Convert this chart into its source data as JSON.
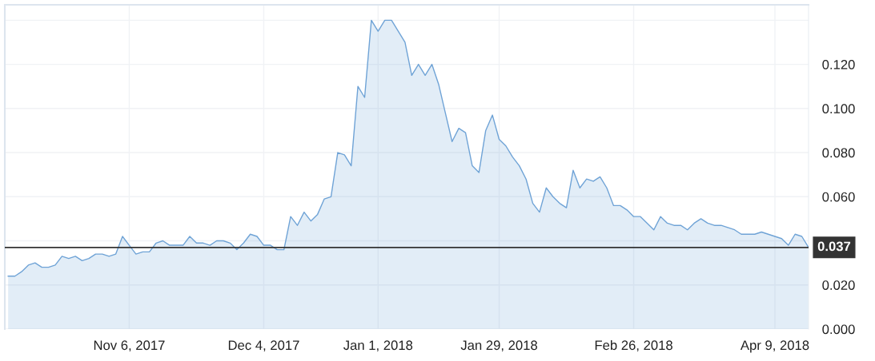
{
  "chart_data": {
    "type": "area",
    "categories": [
      null,
      null,
      null,
      null,
      null,
      null,
      null,
      null,
      null,
      null,
      null,
      null,
      null,
      null,
      null,
      null,
      null,
      null,
      "Nov 6, 2017",
      null,
      null,
      null,
      null,
      null,
      null,
      null,
      null,
      null,
      null,
      null,
      null,
      null,
      null,
      null,
      null,
      null,
      null,
      null,
      "Dec 4, 2017",
      null,
      null,
      null,
      null,
      null,
      null,
      null,
      null,
      null,
      null,
      null,
      null,
      null,
      null,
      null,
      null,
      "Jan 1, 2018",
      null,
      null,
      null,
      null,
      null,
      null,
      null,
      null,
      null,
      null,
      null,
      null,
      null,
      null,
      null,
      null,
      null,
      "Jan 29, 2018",
      null,
      null,
      null,
      null,
      null,
      null,
      null,
      null,
      null,
      null,
      null,
      null,
      null,
      null,
      null,
      null,
      null,
      null,
      null,
      "Feb 26, 2018",
      null,
      null,
      null,
      null,
      null,
      null,
      null,
      null,
      null,
      null,
      null,
      null,
      null,
      null,
      null,
      null,
      null,
      null,
      null,
      null,
      "Apr 9, 2018",
      null,
      null,
      null,
      null,
      null
    ],
    "series": [
      {
        "color": "#6fa3d6",
        "values": [
          0.024,
          0.024,
          0.026,
          0.029,
          0.03,
          0.028,
          0.028,
          0.029,
          0.033,
          0.032,
          0.033,
          0.031,
          0.032,
          0.034,
          0.034,
          0.033,
          0.034,
          0.042,
          0.038,
          0.034,
          0.035,
          0.035,
          0.039,
          0.04,
          0.038,
          0.038,
          0.038,
          0.042,
          0.039,
          0.039,
          0.038,
          0.04,
          0.04,
          0.039,
          0.036,
          0.039,
          0.043,
          0.042,
          0.038,
          0.038,
          0.036,
          0.036,
          0.051,
          0.047,
          0.053,
          0.049,
          0.052,
          0.059,
          0.06,
          0.08,
          0.079,
          0.074,
          0.11,
          0.105,
          0.14,
          0.135,
          0.14,
          0.14,
          0.135,
          0.13,
          0.115,
          0.12,
          0.115,
          0.12,
          0.111,
          0.098,
          0.085,
          0.091,
          0.089,
          0.074,
          0.071,
          0.09,
          0.097,
          0.086,
          0.083,
          0.078,
          0.074,
          0.068,
          0.057,
          0.053,
          0.064,
          0.06,
          0.057,
          0.055,
          0.072,
          0.064,
          0.068,
          0.067,
          0.069,
          0.064,
          0.056,
          0.056,
          0.054,
          0.051,
          0.051,
          0.048,
          0.045,
          0.051,
          0.048,
          0.047,
          0.047,
          0.045,
          0.048,
          0.05,
          0.048,
          0.047,
          0.047,
          0.046,
          0.045,
          0.043,
          0.043,
          0.043,
          0.044,
          0.043,
          0.042,
          0.041,
          0.038,
          0.043,
          0.042,
          0.037
        ]
      }
    ],
    "ylim": [
      0,
      0.147
    ],
    "yticks": [
      {
        "value": 0,
        "label": "0.000"
      },
      {
        "value": 0.02,
        "label": "0.020"
      },
      {
        "value": 0.04,
        "label": null
      },
      {
        "value": 0.06,
        "label": "0.060"
      },
      {
        "value": 0.08,
        "label": "0.080"
      },
      {
        "value": 0.1,
        "label": "0.100"
      },
      {
        "value": 0.12,
        "label": "0.120"
      },
      {
        "value": 0.14,
        "label": null
      }
    ],
    "ref_lines": [
      {
        "axis": "y",
        "value": 0.037,
        "label": "0.037",
        "color": "#333333"
      }
    ],
    "grid": true,
    "legend": false
  }
}
